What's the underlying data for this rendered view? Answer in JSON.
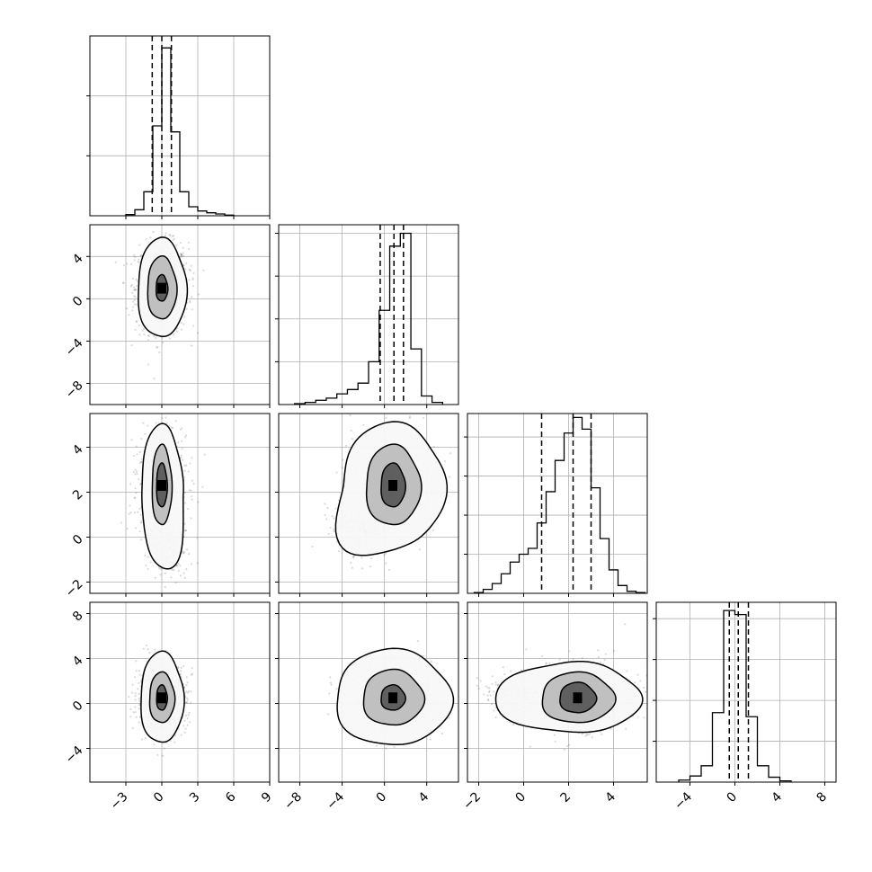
{
  "chart_data": {
    "type": "corner",
    "parameters": 4,
    "xlabel": "",
    "ylabel": "",
    "grid": true,
    "title": "",
    "axes": [
      {
        "range": [
          -6,
          9
        ],
        "ticks": [
          -3,
          0,
          3,
          6,
          9
        ],
        "tick_labels": [
          "−3",
          "0",
          "3",
          "6",
          "9"
        ]
      },
      {
        "range": [
          -10,
          7
        ],
        "ticks": [
          -8,
          -4,
          0,
          4
        ],
        "tick_labels": [
          "−8",
          "−4",
          "0",
          "4"
        ]
      },
      {
        "range": [
          -2.5,
          5.5
        ],
        "ticks": [
          -2,
          0,
          2,
          4
        ],
        "tick_labels": [
          "−2",
          "0",
          "2",
          "4"
        ]
      },
      {
        "range": [
          -7,
          9
        ],
        "ticks": [
          -4,
          0,
          4,
          8
        ],
        "tick_labels": [
          "−4",
          "0",
          "4",
          "8"
        ]
      }
    ],
    "marginals": [
      {
        "param": 0,
        "quantiles": [
          -0.8,
          0.0,
          0.8
        ],
        "bins": [
          -3,
          -2.25,
          -1.5,
          -0.75,
          0,
          0.75,
          1.5,
          2.25,
          3,
          3.75,
          4.5,
          5.25,
          6
        ],
        "counts": [
          2,
          10,
          40,
          150,
          280,
          140,
          40,
          15,
          8,
          5,
          3,
          1
        ],
        "ylim": [
          0,
          300
        ]
      },
      {
        "param": 1,
        "quantiles": [
          -0.4,
          0.9,
          1.8
        ],
        "bins": [
          -8.5,
          -7.5,
          -6.5,
          -5.5,
          -4.5,
          -3.5,
          -2.5,
          -1.5,
          -0.5,
          0.5,
          1.5,
          2.5,
          3.5,
          4.5,
          5.5
        ],
        "counts": [
          2,
          5,
          10,
          15,
          25,
          35,
          50,
          100,
          220,
          370,
          400,
          130,
          20,
          5
        ],
        "ylim": [
          0,
          420
        ]
      },
      {
        "param": 2,
        "quantiles": [
          0.8,
          2.2,
          3.0
        ],
        "bins": [
          -2.2,
          -1.8,
          -1.4,
          -1.0,
          -0.6,
          -0.2,
          0.2,
          0.6,
          1.0,
          1.4,
          1.8,
          2.2,
          2.6,
          3.0,
          3.4,
          3.8,
          4.2,
          4.6,
          5.0,
          5.4
        ],
        "counts": [
          2,
          10,
          25,
          50,
          80,
          100,
          115,
          180,
          260,
          340,
          410,
          450,
          420,
          270,
          140,
          60,
          20,
          5,
          2
        ],
        "ylim": [
          0,
          460
        ]
      },
      {
        "param": 3,
        "quantiles": [
          -0.5,
          0.3,
          1.2
        ],
        "bins": [
          -5,
          -4,
          -3,
          -2,
          -1,
          0,
          1,
          2,
          3,
          4,
          5
        ],
        "counts": [
          5,
          15,
          40,
          170,
          420,
          410,
          160,
          40,
          12,
          3
        ],
        "ylim": [
          0,
          440
        ]
      }
    ],
    "panels2d": [
      {
        "x_param": 0,
        "y_param": 1,
        "mean": [
          0,
          1
        ],
        "sd": [
          1.3,
          2.5
        ],
        "levels": [
          [
            0.3,
            0.4
          ],
          [
            0.75,
            0.95
          ],
          [
            1.25,
            1.5
          ]
        ],
        "tail": null
      },
      {
        "x_param": 0,
        "y_param": 2,
        "mean": [
          0,
          2.3
        ],
        "sd": [
          1.2,
          1.3
        ],
        "levels": [
          [
            0.3,
            0.6
          ],
          [
            0.55,
            1.1
          ],
          [
            1.15,
            1.65
          ]
        ],
        "tail": [
          0.6,
          -0.5
        ]
      },
      {
        "x_param": 1,
        "y_param": 2,
        "mean": [
          0.8,
          2.3
        ],
        "sd": [
          2.3,
          1.3
        ],
        "levels": [
          [
            0.4,
            0.6
          ],
          [
            0.9,
            1.1
          ],
          [
            1.7,
            1.7
          ]
        ],
        "tail": [
          -2.5,
          0.2
        ]
      },
      {
        "x_param": 0,
        "y_param": 3,
        "mean": [
          0,
          0.5
        ],
        "sd": [
          1.2,
          1.8
        ],
        "levels": [
          [
            0.3,
            0.5
          ],
          [
            0.7,
            1.0
          ],
          [
            1.2,
            1.8
          ]
        ],
        "tail": null
      },
      {
        "x_param": 1,
        "y_param": 3,
        "mean": [
          0.8,
          0.5
        ],
        "sd": [
          2.3,
          1.8
        ],
        "levels": [
          [
            0.4,
            0.5
          ],
          [
            1.0,
            1.1
          ],
          [
            1.9,
            1.9
          ]
        ],
        "tail": null
      },
      {
        "x_param": 2,
        "y_param": 3,
        "mean": [
          2.4,
          0.5
        ],
        "sd": [
          1.3,
          1.8
        ],
        "levels": [
          [
            0.5,
            0.6
          ],
          [
            1.0,
            1.0
          ],
          [
            1.7,
            1.4
          ]
        ],
        "tail": [
          -0.3,
          0.5
        ]
      }
    ]
  }
}
